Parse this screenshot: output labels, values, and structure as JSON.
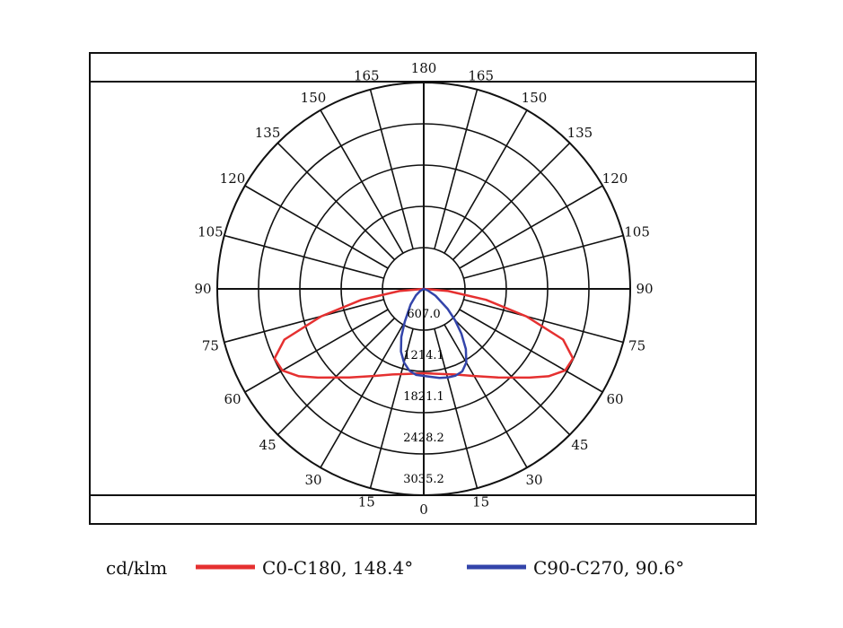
{
  "chart_data": {
    "type": "polar",
    "title": "",
    "unit_label": "cd/klm",
    "radial_ticks": [
      "607.0",
      "1214.1",
      "1821.1",
      "2428.2",
      "3035.2"
    ],
    "radial_max": 3035.2,
    "angle_step": 15,
    "angle_labels_left": [
      "0",
      "15",
      "30",
      "45",
      "60",
      "75",
      "90",
      "105",
      "120",
      "135",
      "150",
      "165",
      "180"
    ],
    "angle_labels_right": [
      "15",
      "30",
      "45",
      "60",
      "75",
      "90",
      "105",
      "120",
      "135",
      "150",
      "165"
    ],
    "series": [
      {
        "name": "C0-C180, 148.4°",
        "color": "#e53030",
        "points_right": [
          [
            0,
            1240
          ],
          [
            10,
            1270
          ],
          [
            20,
            1340
          ],
          [
            30,
            1480
          ],
          [
            40,
            1700
          ],
          [
            50,
            2030
          ],
          [
            55,
            2240
          ],
          [
            60,
            2400
          ],
          [
            65,
            2420
          ],
          [
            70,
            2180
          ],
          [
            75,
            1560
          ],
          [
            80,
            930
          ],
          [
            85,
            360
          ],
          [
            90,
            0
          ]
        ],
        "points_left": [
          [
            0,
            1240
          ],
          [
            10,
            1270
          ],
          [
            20,
            1340
          ],
          [
            30,
            1480
          ],
          [
            40,
            1700
          ],
          [
            50,
            2030
          ],
          [
            55,
            2240
          ],
          [
            60,
            2400
          ],
          [
            65,
            2420
          ],
          [
            70,
            2180
          ],
          [
            75,
            1560
          ],
          [
            80,
            930
          ],
          [
            85,
            360
          ],
          [
            90,
            0
          ]
        ]
      },
      {
        "name": "C90-C270, 90.6°",
        "color": "#3344aa",
        "points_right": [
          [
            0,
            1280
          ],
          [
            5,
            1300
          ],
          [
            10,
            1330
          ],
          [
            15,
            1350
          ],
          [
            20,
            1360
          ],
          [
            25,
            1340
          ],
          [
            30,
            1250
          ],
          [
            35,
            1080
          ],
          [
            40,
            860
          ],
          [
            45,
            650
          ],
          [
            50,
            460
          ],
          [
            60,
            200
          ],
          [
            70,
            60
          ],
          [
            90,
            0
          ]
        ],
        "points_left": [
          [
            0,
            1280
          ],
          [
            5,
            1270
          ],
          [
            10,
            1220
          ],
          [
            15,
            1120
          ],
          [
            20,
            980
          ],
          [
            25,
            780
          ],
          [
            30,
            560
          ],
          [
            40,
            300
          ],
          [
            50,
            150
          ],
          [
            60,
            60
          ],
          [
            90,
            0
          ]
        ]
      }
    ]
  }
}
